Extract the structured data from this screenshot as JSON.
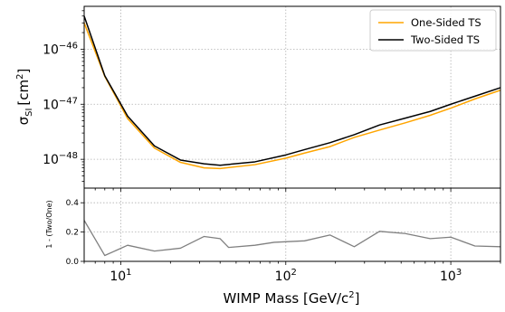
{
  "chart_data": [
    {
      "type": "line",
      "xscale": "log",
      "yscale": "log",
      "xlim": [
        6,
        2000
      ],
      "ylim": [
        3e-49,
        6e-46
      ],
      "ylabel_main": "σ",
      "ylabel_sub": "SI",
      "ylabel_unit": "[cm",
      "ylabel_exp": "2",
      "ylabel_close": "]",
      "grid": true,
      "legend_position": "top-right",
      "x_ticks": [
        {
          "value": 10,
          "base": "10",
          "exp": "1"
        },
        {
          "value": 100,
          "base": "10",
          "exp": "2"
        },
        {
          "value": 1000,
          "base": "10",
          "exp": "3"
        }
      ],
      "y_ticks": [
        {
          "value": 1e-46,
          "base": "10",
          "exp": "−46"
        },
        {
          "value": 1e-47,
          "base": "10",
          "exp": "−47"
        },
        {
          "value": 1e-48,
          "base": "10",
          "exp": "−48"
        }
      ],
      "series": [
        {
          "name": "One-Sided TS",
          "color": "#ffa500",
          "x": [
            6,
            8,
            11,
            16,
            23,
            32,
            40,
            65,
            100,
            130,
            185,
            260,
            370,
            530,
            750,
            1000,
            1400,
            2000
          ],
          "y": [
            3e-46,
            3.2e-47,
            5.5e-48,
            1.6e-48,
            8.8e-49,
            7e-49,
            6.8e-49,
            8e-49,
            1.05e-48,
            1.3e-48,
            1.7e-48,
            2.5e-48,
            3.4e-48,
            4.6e-48,
            6.3e-48,
            8.5e-48,
            1.25e-47,
            1.8e-47
          ]
        },
        {
          "name": "Two-Sided TS",
          "color": "#000000",
          "x": [
            6,
            8,
            11,
            16,
            23,
            32,
            40,
            65,
            100,
            130,
            185,
            260,
            370,
            530,
            750,
            1000,
            1400,
            2000
          ],
          "y": [
            4e-46,
            3.3e-47,
            6.1e-48,
            1.75e-48,
            9.7e-49,
            8.3e-49,
            7.8e-49,
            9e-49,
            1.2e-48,
            1.5e-48,
            2e-48,
            2.8e-48,
            4.2e-48,
            5.6e-48,
            7.4e-48,
            1e-47,
            1.4e-47,
            2e-47
          ]
        }
      ]
    },
    {
      "type": "line",
      "xscale": "log",
      "xlim": [
        6,
        2000
      ],
      "ylim": [
        0,
        0.5
      ],
      "xlabel_main": "WIMP Mass [GeV/c",
      "xlabel_exp": "2",
      "xlabel_close": "]",
      "ylabel": "1 - (Two/One)",
      "grid": true,
      "x_ticks": [
        {
          "value": 10,
          "base": "10",
          "exp": "1"
        },
        {
          "value": 100,
          "base": "10",
          "exp": "2"
        },
        {
          "value": 1000,
          "base": "10",
          "exp": "3"
        }
      ],
      "y_ticks": [
        {
          "value": 0.0,
          "label": "0.0"
        },
        {
          "value": 0.2,
          "label": "0.2"
        },
        {
          "value": 0.4,
          "label": "0.4"
        }
      ],
      "series": [
        {
          "color": "#808080",
          "x": [
            6,
            8,
            11,
            16,
            23,
            32,
            40,
            45,
            65,
            85,
            130,
            185,
            260,
            370,
            530,
            750,
            1000,
            1400,
            2000
          ],
          "y": [
            0.28,
            0.04,
            0.11,
            0.07,
            0.09,
            0.17,
            0.155,
            0.095,
            0.11,
            0.13,
            0.14,
            0.18,
            0.1,
            0.205,
            0.19,
            0.155,
            0.165,
            0.105,
            0.1
          ]
        }
      ]
    }
  ]
}
